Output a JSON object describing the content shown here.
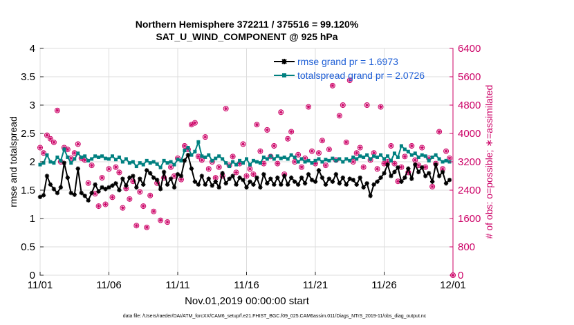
{
  "chart_data": {
    "type": "line",
    "title": "Northern Hemisphere 372211 / 375516 = 99.120%",
    "subtitle": "SAT_U_WIND_COMPONENT @ 925 hPa",
    "xlabel": "Nov.01,2019 00:00:00 start",
    "ylabel": "rmse and totalspread",
    "y2label": "# of obs: o=possible; ∗=assimilated",
    "footnote": "data file: /Users/raeder/DAI/ATM_forcXX/CAM6_setup/f.e21.FHIST_BGC.f09_025.CAM6assim.011/Diags_NTrS_2019-11/obs_diag_output.nc",
    "xlim": [
      0,
      30
    ],
    "ylim": [
      0,
      4
    ],
    "y2lim": [
      0,
      6400
    ],
    "xticks": [
      0,
      5,
      10,
      15,
      20,
      25,
      30
    ],
    "xtick_labels": [
      "11/01",
      "11/06",
      "11/11",
      "11/16",
      "11/21",
      "11/26",
      "12/01"
    ],
    "yticks": [
      0,
      0.5,
      1,
      1.5,
      2,
      2.5,
      3,
      3.5,
      4
    ],
    "ytick_labels": [
      "0",
      "0.5",
      "1",
      "1.5",
      "2",
      "2.5",
      "3",
      "3.5",
      "4"
    ],
    "y2ticks": [
      0,
      800,
      1600,
      2400,
      3200,
      4000,
      4800,
      5600,
      6400
    ],
    "y2tick_labels": [
      "0",
      "800",
      "1600",
      "2400",
      "3200",
      "4000",
      "4800",
      "5600",
      "6400"
    ],
    "legend_position": "top-right",
    "colors": {
      "rmse": "#000000",
      "spread": "#008080",
      "obs": "#cc0066",
      "right_axis": "#cc0066",
      "legend_text": "#1f5fd6"
    },
    "series": [
      {
        "name": "rmse grand pr = 1.6973",
        "key": "rmse",
        "x": [
          0.0,
          0.25,
          0.5,
          0.75,
          1.0,
          1.25,
          1.5,
          1.75,
          2.0,
          2.25,
          2.5,
          2.75,
          3.0,
          3.25,
          3.5,
          3.75,
          4.0,
          4.25,
          4.5,
          4.75,
          5.0,
          5.25,
          5.5,
          5.75,
          6.0,
          6.25,
          6.5,
          6.75,
          7.0,
          7.25,
          7.5,
          7.75,
          8.0,
          8.25,
          8.5,
          8.75,
          9.0,
          9.25,
          9.5,
          9.75,
          10.0,
          10.25,
          10.5,
          10.75,
          11.0,
          11.25,
          11.5,
          11.75,
          12.0,
          12.25,
          12.5,
          12.75,
          13.0,
          13.25,
          13.5,
          13.75,
          14.0,
          14.25,
          14.5,
          14.75,
          15.0,
          15.25,
          15.5,
          15.75,
          16.0,
          16.25,
          16.5,
          16.75,
          17.0,
          17.25,
          17.5,
          17.75,
          18.0,
          18.25,
          18.5,
          18.75,
          19.0,
          19.25,
          19.5,
          19.75,
          20.0,
          20.25,
          20.5,
          20.75,
          21.0,
          21.25,
          21.5,
          21.75,
          22.0,
          22.25,
          22.5,
          22.75,
          23.0,
          23.25,
          23.5,
          23.75,
          24.0,
          24.25,
          24.5,
          24.75,
          25.0,
          25.25,
          25.5,
          25.75,
          26.0,
          26.25,
          26.5,
          26.75,
          27.0,
          27.25,
          27.5,
          27.75,
          28.0,
          28.25,
          28.5,
          28.75,
          29.0,
          29.25,
          29.5,
          29.75
        ],
        "values": [
          1.38,
          1.41,
          1.75,
          1.6,
          1.52,
          1.45,
          1.55,
          1.98,
          1.72,
          1.45,
          1.42,
          1.88,
          1.45,
          1.4,
          1.32,
          1.45,
          1.6,
          1.48,
          1.55,
          1.52,
          1.55,
          1.58,
          1.62,
          1.5,
          1.7,
          1.58,
          1.72,
          1.75,
          1.55,
          1.7,
          1.6,
          1.85,
          1.8,
          1.72,
          1.68,
          1.52,
          1.82,
          1.6,
          1.7,
          1.55,
          1.78,
          1.75,
          2.02,
          2.12,
          1.88,
          1.65,
          1.6,
          1.75,
          1.6,
          1.7,
          1.58,
          1.65,
          1.55,
          1.8,
          1.62,
          1.7,
          1.75,
          1.6,
          1.72,
          1.68,
          1.55,
          1.65,
          1.6,
          1.72,
          1.55,
          1.78,
          1.62,
          1.7,
          1.6,
          1.72,
          1.6,
          1.75,
          1.6,
          1.72,
          1.65,
          1.6,
          1.72,
          1.62,
          1.78,
          1.68,
          1.65,
          1.85,
          1.72,
          1.6,
          1.7,
          1.65,
          1.78,
          1.62,
          1.72,
          1.6,
          1.7,
          1.68,
          1.6,
          1.72,
          1.55,
          1.62,
          1.4,
          1.6,
          1.65,
          1.72,
          1.8,
          1.95,
          1.75,
          1.82,
          1.9,
          1.65,
          1.72,
          1.88,
          1.7,
          1.95,
          1.82,
          1.9,
          1.75,
          1.8,
          1.65,
          1.95,
          1.75,
          1.82,
          1.62,
          1.68
        ]
      },
      {
        "name": "totalspread grand pr = 2.0726",
        "key": "spread",
        "x": [
          0.0,
          0.25,
          0.5,
          0.75,
          1.0,
          1.25,
          1.5,
          1.75,
          2.0,
          2.25,
          2.5,
          2.75,
          3.0,
          3.25,
          3.5,
          3.75,
          4.0,
          4.25,
          4.5,
          4.75,
          5.0,
          5.25,
          5.5,
          5.75,
          6.0,
          6.25,
          6.5,
          6.75,
          7.0,
          7.25,
          7.5,
          7.75,
          8.0,
          8.25,
          8.5,
          8.75,
          9.0,
          9.25,
          9.5,
          9.75,
          10.0,
          10.25,
          10.5,
          10.75,
          11.0,
          11.25,
          11.5,
          11.75,
          12.0,
          12.25,
          12.5,
          12.75,
          13.0,
          13.25,
          13.5,
          13.75,
          14.0,
          14.25,
          14.5,
          14.75,
          15.0,
          15.25,
          15.5,
          15.75,
          16.0,
          16.25,
          16.5,
          16.75,
          17.0,
          17.25,
          17.5,
          17.75,
          18.0,
          18.25,
          18.5,
          18.75,
          19.0,
          19.25,
          19.5,
          19.75,
          20.0,
          20.25,
          20.5,
          20.75,
          21.0,
          21.25,
          21.5,
          21.75,
          22.0,
          22.25,
          22.5,
          22.75,
          23.0,
          23.25,
          23.5,
          23.75,
          24.0,
          24.25,
          24.5,
          24.75,
          25.0,
          25.25,
          25.5,
          25.75,
          26.0,
          26.25,
          26.5,
          26.75,
          27.0,
          27.25,
          27.5,
          27.75,
          28.0,
          28.25,
          28.5,
          28.75,
          29.0,
          29.25,
          29.5,
          29.75
        ],
        "values": [
          1.95,
          1.98,
          2.12,
          2.0,
          1.98,
          2.08,
          2.02,
          2.22,
          2.08,
          1.98,
          2.05,
          2.15,
          2.08,
          2.1,
          2.02,
          2.05,
          2.1,
          2.08,
          2.1,
          2.06,
          2.05,
          2.1,
          2.04,
          2.08,
          2.0,
          2.05,
          1.98,
          2.0,
          1.92,
          1.98,
          1.95,
          2.02,
          1.98,
          2.0,
          1.96,
          1.9,
          2.02,
          1.98,
          2.0,
          1.95,
          2.04,
          2.02,
          2.2,
          2.25,
          2.12,
          2.18,
          2.35,
          2.1,
          2.08,
          2.12,
          2.02,
          2.06,
          2.1,
          2.05,
          1.98,
          1.92,
          2.0,
          1.95,
          2.02,
          1.98,
          2.05,
          1.95,
          2.02,
          2.0,
          1.98,
          2.08,
          2.05,
          2.1,
          2.05,
          2.1,
          2.06,
          2.08,
          2.05,
          2.12,
          2.08,
          2.0,
          2.05,
          2.0,
          2.02,
          1.98,
          2.02,
          2.05,
          2.0,
          2.04,
          2.02,
          2.06,
          2.02,
          2.05,
          2.0,
          2.05,
          2.02,
          2.08,
          2.05,
          2.1,
          2.08,
          2.12,
          2.05,
          2.1,
          2.08,
          2.12,
          2.05,
          2.1,
          2.02,
          2.15,
          2.08,
          2.28,
          2.22,
          2.18,
          2.12,
          2.15,
          2.08,
          2.12,
          2.1,
          2.02,
          2.08,
          2.12,
          2.05,
          2.0,
          2.02,
          2.0
        ]
      }
    ],
    "obs_counts": {
      "x": [
        0.0,
        0.25,
        0.5,
        0.75,
        1.0,
        1.25,
        1.5,
        1.75,
        2.0,
        2.25,
        2.5,
        2.75,
        3.0,
        3.25,
        3.5,
        3.75,
        4.0,
        4.25,
        4.5,
        4.75,
        5.0,
        5.25,
        5.5,
        5.75,
        6.0,
        6.25,
        6.5,
        6.75,
        7.0,
        7.25,
        7.5,
        7.75,
        8.0,
        8.25,
        8.5,
        8.75,
        9.0,
        9.25,
        9.5,
        9.75,
        10.0,
        10.25,
        10.5,
        10.75,
        11.0,
        11.25,
        11.5,
        11.75,
        12.0,
        12.25,
        12.5,
        12.75,
        13.0,
        13.25,
        13.5,
        13.75,
        14.0,
        14.25,
        14.5,
        14.75,
        15.0,
        15.25,
        15.5,
        15.75,
        16.0,
        16.25,
        16.5,
        16.75,
        17.0,
        17.25,
        17.5,
        17.75,
        18.0,
        18.25,
        18.5,
        18.75,
        19.0,
        19.25,
        19.5,
        19.75,
        20.0,
        20.25,
        20.5,
        20.75,
        21.0,
        21.25,
        21.5,
        21.75,
        22.0,
        22.25,
        22.5,
        22.75,
        23.0,
        23.25,
        23.5,
        23.75,
        24.0,
        24.25,
        24.5,
        24.75,
        25.0,
        25.25,
        25.5,
        25.75,
        26.0,
        26.25,
        26.5,
        26.75,
        27.0,
        27.25,
        27.5,
        27.75,
        28.0,
        28.25,
        28.5,
        28.75,
        29.0,
        29.25,
        29.5,
        29.75,
        30.0
      ],
      "values": [
        3600,
        3450,
        3950,
        3850,
        3750,
        4650,
        3200,
        3600,
        3550,
        3300,
        3450,
        3700,
        3300,
        3250,
        2600,
        3100,
        2300,
        1950,
        2750,
        2000,
        3000,
        2200,
        3050,
        2900,
        1900,
        2450,
        2150,
        2650,
        1400,
        2350,
        1950,
        1350,
        2250,
        1800,
        2600,
        1550,
        2750,
        1500,
        3050,
        2800,
        3300,
        2700,
        3650,
        3550,
        4250,
        4300,
        3350,
        3250,
        3900,
        3000,
        3200,
        2750,
        3050,
        2800,
        4700,
        3100,
        3350,
        2900,
        3150,
        3700,
        2800,
        3000,
        2850,
        4250,
        3500,
        3150,
        4100,
        3350,
        3650,
        3150,
        4600,
        2850,
        3850,
        4050,
        3200,
        3400,
        3050,
        3300,
        4750,
        3500,
        3150,
        3450,
        3800,
        3100,
        3550,
        5350,
        3250,
        4500,
        4800,
        3750,
        5500,
        3200,
        3450,
        3600,
        3050,
        4800,
        3250,
        3450,
        3000,
        4750,
        3150,
        3200,
        3650,
        3150,
        2650,
        3050,
        3350,
        2900,
        3650,
        3250,
        3100,
        3600,
        3050,
        3300,
        2500,
        3150,
        4050,
        3000,
        3500,
        3300,
        0
      ]
    }
  }
}
